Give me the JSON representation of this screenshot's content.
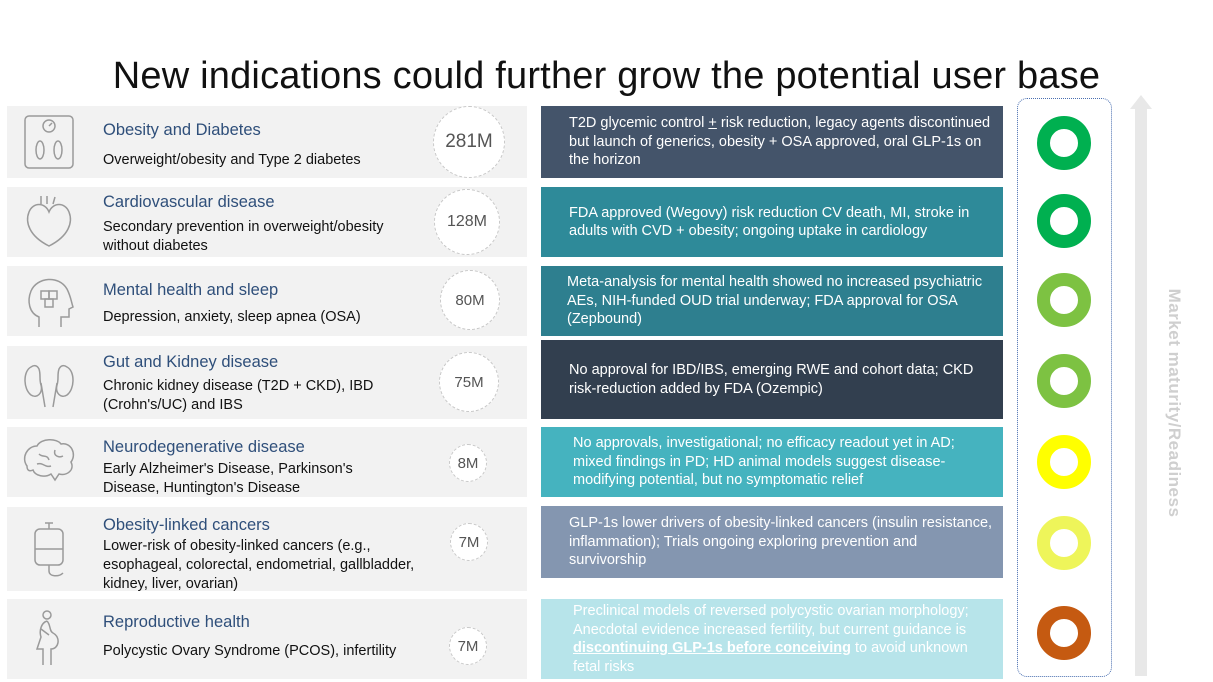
{
  "title": "New indications could further grow the potential user base",
  "axis_label": "Market maturity/Readiness",
  "rows": [
    {
      "title": "Obesity and Diabetes",
      "desc": "Overweight/obesity and Type 2 diabetes",
      "population": "281M",
      "detail_pre": "T2D glycemic control ",
      "detail_u": "+",
      "detail_post": " risk reduction, legacy agents discontinued but launch of generics, obesity + OSA approved, oral GLP-1s on the horizon",
      "box_color": "#44546a",
      "ring_color": "#00b050",
      "icon": "scale-icon"
    },
    {
      "title": "Cardiovascular disease",
      "desc": "Secondary prevention in overweight/obesity without diabetes",
      "population": "128M",
      "detail": "FDA approved (Wegovy) risk reduction CV death, MI, stroke in adults with CVD + obesity; ongoing uptake in cardiology",
      "box_color": "#2e8a99",
      "ring_color": "#00b050",
      "icon": "heart-icon"
    },
    {
      "title": "Mental health and sleep",
      "desc": "Depression, anxiety, sleep apnea (OSA)",
      "population": "80M",
      "detail": "Meta-analysis for mental health showed no increased psychiatric AEs, NIH-funded OUD trial underway; FDA approval for OSA (Zepbound)",
      "box_color": "#2e7f8f",
      "ring_color": "#7dc242",
      "icon": "head-puzzle-icon"
    },
    {
      "title": "Gut and Kidney disease",
      "desc": "Chronic kidney disease (T2D + CKD), IBD (Crohn's/UC) and IBS",
      "population": "75M",
      "detail": "No approval for IBD/IBS, emerging RWE and cohort data; CKD risk-reduction added by FDA (Ozempic)",
      "box_color": "#323f4f",
      "ring_color": "#7dc242",
      "icon": "kidneys-icon"
    },
    {
      "title": "Neurodegenerative disease",
      "desc": "Early Alzheimer's Disease, Parkinson's Disease, Huntington's Disease",
      "population": "8M",
      "detail": "No approvals, investigational; no efficacy readout yet in AD; mixed findings in PD; HD animal models suggest disease-modifying potential, but no symptomatic relief",
      "box_color": "#45b3bf",
      "ring_color": "#ffff00",
      "icon": "brain-icon"
    },
    {
      "title": "Obesity-linked cancers",
      "desc": "Lower-risk of obesity-linked cancers (e.g., esophageal, colorectal, endometrial, gallbladder, kidney, liver, ovarian)",
      "population": "7M",
      "detail": "GLP-1s lower drivers of obesity-linked cancers (insulin resistance, inflammation); Trials ongoing exploring prevention and survivorship",
      "box_color": "#8496b0",
      "ring_color": "#eef55a",
      "icon": "iv-bag-icon"
    },
    {
      "title": "Reproductive health",
      "desc": "Polycystic Ovary Syndrome (PCOS), infertility",
      "population": "7M",
      "detail_pre": "Preclinical models of reversed polycystic ovarian morphology; Anecdotal evidence increased fertility, but current guidance is ",
      "detail_u": "discontinuing GLP-1s before conceiving",
      "detail_post": " to avoid unknown fetal risks",
      "box_color": "#b7e4ea",
      "ring_color": "#c55a11",
      "icon": "pregnant-woman-icon"
    }
  ]
}
